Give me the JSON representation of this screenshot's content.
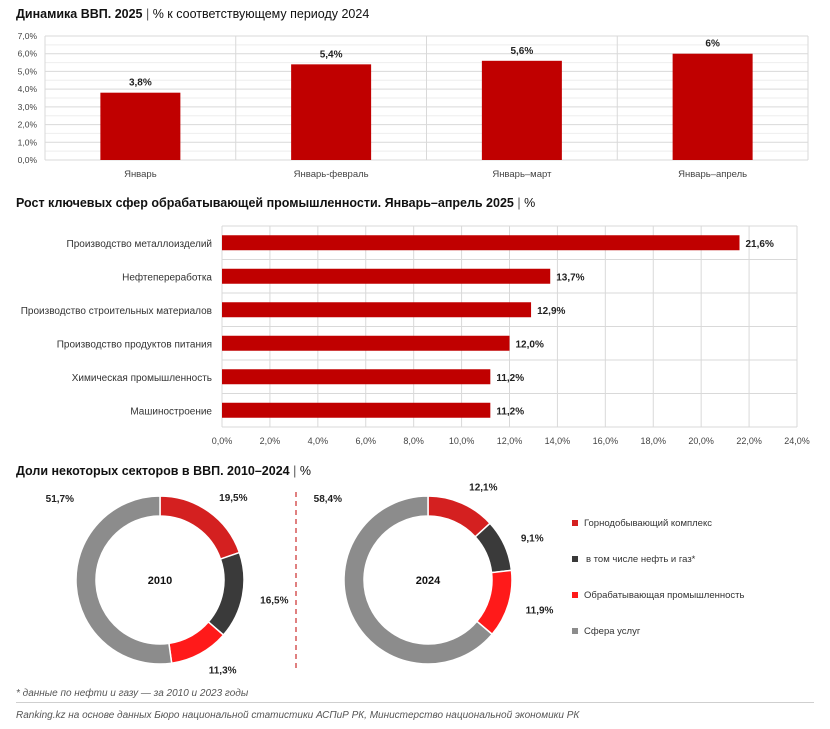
{
  "titles": {
    "gdp_bold": "Динамика ВВП. 2025",
    "gdp_rest": "% к соответствующему периоду 2024",
    "mfg_bold": "Рост ключевых сфер обрабатывающей промышленности. Январь–апрель 2025",
    "mfg_rest": "%",
    "shares_bold": "Доли некоторых секторов в ВВП. 2010–2024",
    "shares_rest": "%"
  },
  "notes": {
    "footnote": "* данные по нефти и газу — за 2010 и 2023 годы",
    "source": "Ranking.kz на основе данных Бюро национальной статистики АСПиР РК, Министерство национальной экономики РК"
  },
  "colors": {
    "bar_red": "#c00000",
    "mining": "#d42020",
    "oil_gas": "#3a3a3a",
    "manufacturing": "#ff1a1a",
    "services": "#8c8c8c",
    "grid": "#d9d9d9",
    "divider": "#c00000"
  },
  "chart_data": [
    {
      "type": "bar",
      "categories": [
        "Январь",
        "Январь-февраль",
        "Январь–март",
        "Январь–апрель"
      ],
      "values": [
        3.8,
        5.4,
        5.6,
        6.0
      ],
      "data_labels": [
        "3,8%",
        "5,4%",
        "5,6%",
        "6%"
      ],
      "ylim": [
        0,
        7
      ],
      "yticks": [
        "0,0%",
        "1,0%",
        "2,0%",
        "3,0%",
        "4,0%",
        "5,0%",
        "6,0%",
        "7,0%"
      ],
      "grid": true
    },
    {
      "type": "bar",
      "orientation": "horizontal",
      "categories": [
        "Производство металлоизделий",
        "Нефтепереработка",
        "Производство строительных материалов",
        "Производство продуктов питания",
        "Химическая промышленность",
        "Машиностроение"
      ],
      "values": [
        21.6,
        13.7,
        12.9,
        12.0,
        11.2,
        11.2
      ],
      "data_labels": [
        "21,6%",
        "13,7%",
        "12,9%",
        "12,0%",
        "11,2%",
        "11,2%"
      ],
      "xlim": [
        0,
        24
      ],
      "xticks": [
        "0,0%",
        "2,0%",
        "4,0%",
        "6,0%",
        "8,0%",
        "10,0%",
        "12,0%",
        "14,0%",
        "16,0%",
        "18,0%",
        "20,0%",
        "22,0%",
        "24,0%"
      ],
      "grid": true
    },
    {
      "type": "pie",
      "donut": true,
      "legend": [
        "Горнодобывающий комплекс",
        "в том числе нефть и газ*",
        "Обрабатывающая промышленность",
        "Сфера услуг"
      ],
      "legend_position": "right",
      "charts": [
        {
          "center_label": "2010",
          "slices": [
            {
              "sector": "Горнодобывающий комплекс",
              "value": 19.5,
              "label": "19,5%"
            },
            {
              "sector": "в том числе нефть и газ*",
              "value": 16.5,
              "label": "16,5%"
            },
            {
              "sector": "Обрабатывающая промышленность",
              "value": 11.3,
              "label": "11,3%"
            },
            {
              "sector": "Сфера услуг",
              "value": 51.7,
              "label": "51,7%"
            }
          ]
        },
        {
          "center_label": "2024",
          "slices": [
            {
              "sector": "Горнодобывающий комплекс",
              "value": 12.1,
              "label": "12,1%"
            },
            {
              "sector": "в том числе нефть и газ*",
              "value": 9.1,
              "label": "9,1%"
            },
            {
              "sector": "Обрабатывающая промышленность",
              "value": 11.9,
              "label": "11,9%"
            },
            {
              "sector": "Сфера услуг",
              "value": 58.4,
              "label": "58,4%"
            }
          ]
        }
      ]
    }
  ]
}
